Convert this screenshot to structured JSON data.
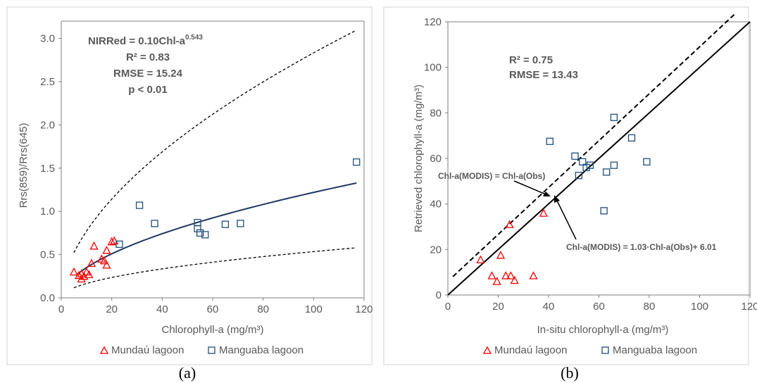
{
  "chart_data": [
    {
      "type": "scatter",
      "panel_label": "(a)",
      "xlabel": "Chlorophyll-a (mg/m³)",
      "ylabel": "Rrs(859)/Rrs(645)",
      "xlim": [
        0,
        120
      ],
      "ylim": [
        0.0,
        3.2
      ],
      "xticks": [
        "0",
        "20",
        "40",
        "60",
        "80",
        "100",
        "120"
      ],
      "yticks": [
        "0.0",
        "0.5",
        "1.0",
        "1.5",
        "2.0",
        "2.5",
        "3.0"
      ],
      "annotation": {
        "equation_base": "NIRRed = 0.10Chl-a",
        "equation_exp": "0.543",
        "r2": "R² = 0.83",
        "rmse": "RMSE = 15.24",
        "p": "p < 0.01"
      },
      "fit": {
        "a": 0.1,
        "b": 0.543,
        "x_range": [
          6,
          117
        ],
        "color": "#1f3864"
      },
      "bounds": {
        "upper": {
          "a": 0.21,
          "b": 0.565,
          "x_range": [
            5,
            117
          ]
        },
        "lower": {
          "a": 0.051,
          "b": 0.51,
          "x_range": [
            5,
            117
          ]
        }
      },
      "series": [
        {
          "name": "Mundaú lagoon",
          "marker": "triangle",
          "color": "#ff0000",
          "points": [
            [
              5,
              0.3
            ],
            [
              7,
              0.26
            ],
            [
              8,
              0.22
            ],
            [
              8,
              0.28
            ],
            [
              9,
              0.25
            ],
            [
              10,
              0.3
            ],
            [
              11,
              0.27
            ],
            [
              12,
              0.4
            ],
            [
              13,
              0.6
            ],
            [
              16,
              0.45
            ],
            [
              17,
              0.43
            ],
            [
              18,
              0.55
            ],
            [
              18,
              0.38
            ],
            [
              20,
              0.65
            ],
            [
              21,
              0.66
            ]
          ]
        },
        {
          "name": "Manguaba lagoon",
          "marker": "square",
          "color": "#1f4e79",
          "points": [
            [
              23,
              0.62
            ],
            [
              31,
              1.07
            ],
            [
              37,
              0.86
            ],
            [
              54,
              0.8
            ],
            [
              54,
              0.87
            ],
            [
              55,
              0.75
            ],
            [
              57,
              0.73
            ],
            [
              65,
              0.85
            ],
            [
              71,
              0.86
            ],
            [
              117,
              1.57
            ]
          ]
        }
      ]
    },
    {
      "type": "scatter",
      "panel_label": "(b)",
      "xlabel": "In-situ chlorophyll-a (mg/m³)",
      "ylabel": "Retrieved chlorophyll-a (mg/m³)",
      "xlim": [
        0,
        120
      ],
      "ylim": [
        0,
        120
      ],
      "xticks": [
        "0",
        "20",
        "40",
        "60",
        "80",
        "100",
        "120"
      ],
      "yticks": [
        "0",
        "20",
        "40",
        "60",
        "80",
        "100",
        "120"
      ],
      "annotation": {
        "r2": "R² = 0.75",
        "rmse": "RMSE = 13.43",
        "one_to_one_label": "Chl-a(MODIS) = Chl-a(Obs)",
        "regression_label": "Chl-a(MODIS) = 1.03·Chl-a(Obs)+ 6.01"
      },
      "one_to_one": {
        "slope": 1,
        "intercept": 0,
        "x_range": [
          0,
          120
        ]
      },
      "regression": {
        "slope": 1.03,
        "intercept": 6.01,
        "x_range": [
          2,
          114
        ]
      },
      "series": [
        {
          "name": "Mundaú lagoon",
          "marker": "triangle",
          "color": "#ff0000",
          "points": [
            [
              13,
              15.5
            ],
            [
              17.5,
              8.5
            ],
            [
              19.5,
              6
            ],
            [
              21,
              17.5
            ],
            [
              23,
              8.5
            ],
            [
              24.5,
              31
            ],
            [
              25,
              8.5
            ],
            [
              26.5,
              6.5
            ],
            [
              34,
              8.5
            ],
            [
              38,
              36
            ]
          ]
        },
        {
          "name": "Manguaba lagoon",
          "marker": "square",
          "color": "#1f4e79",
          "points": [
            [
              40.5,
              67.5
            ],
            [
              50.5,
              61
            ],
            [
              52,
              52.5
            ],
            [
              53.5,
              58.5
            ],
            [
              55,
              56
            ],
            [
              56.5,
              57
            ],
            [
              62,
              37
            ],
            [
              63,
              54
            ],
            [
              66,
              57
            ],
            [
              66,
              78
            ],
            [
              73,
              69
            ],
            [
              79,
              58.5
            ]
          ]
        }
      ]
    }
  ]
}
